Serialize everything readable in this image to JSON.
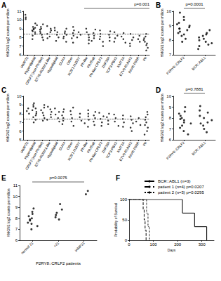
{
  "chart_data": [
    {
      "panel": "A",
      "type": "scatter",
      "marker": "circle",
      "color": "#000000",
      "grid": false,
      "ylabel": "HMGN1 log2 counts per million",
      "annotation": "p=0.001",
      "hline": 8.4,
      "ylim": [
        6,
        11
      ],
      "yticks": [
        6,
        7,
        8,
        9,
        10,
        11
      ],
      "categories": [
        "iAMP21",
        "Hyperdiploid",
        "CRLF2 (non Ph-like)",
        "ETV6-RUNX1-like",
        "Hypodiploid",
        "DUX4",
        "Other",
        "IKZF1 N159Y",
        "Ph-like",
        "PAX5alt",
        "Ph-like CRLF2",
        "ZNF384",
        "TCF3-PBX1",
        "KMT2A",
        "ETV6-RUNX1",
        "PAX5 P80R",
        "Ph"
      ],
      "values": [
        [
          10.3,
          10.6,
          10.1
        ],
        [
          9.6,
          9.4,
          9.2,
          9.1,
          9.0,
          8.9,
          8.8,
          8.7,
          8.6,
          8.4,
          8.2,
          7.8
        ],
        [
          9.5,
          9.2,
          9.0,
          8.9,
          8.7,
          8.5,
          8.3,
          8.0,
          7.7
        ],
        [
          9.3,
          9.0,
          8.8,
          8.6,
          8.4,
          8.1,
          7.9
        ],
        [
          9.1,
          8.8,
          8.6,
          8.3,
          8.0,
          7.6
        ],
        [
          9.0,
          8.7,
          8.5,
          8.3,
          8.1,
          7.9,
          7.5
        ],
        [
          9.2,
          8.8,
          8.5,
          8.2,
          7.9,
          7.4
        ],
        [
          8.6,
          8.3,
          8.0
        ],
        [
          9.0,
          8.6,
          8.3,
          8.0,
          7.7,
          7.3
        ],
        [
          8.9,
          8.5,
          8.2,
          7.9,
          7.6
        ],
        [
          8.8,
          8.4,
          8.1,
          7.8,
          7.5,
          7.0
        ],
        [
          8.7,
          8.3,
          8.0,
          7.6
        ],
        [
          8.6,
          8.2,
          7.9,
          7.5
        ],
        [
          8.5,
          8.1,
          7.8,
          7.4
        ],
        [
          8.4,
          8.0,
          7.7,
          7.3,
          7.0
        ],
        [
          8.2,
          7.8,
          7.5
        ],
        [
          8.4,
          8.1,
          7.9,
          7.7,
          7.5,
          7.3,
          7.1,
          6.8,
          6.5
        ]
      ]
    },
    {
      "panel": "B",
      "type": "scatter",
      "marker": "circle",
      "color": "#000000",
      "grid": false,
      "ylabel": "HMGN1 log2 counts per million",
      "annotation": "p=0.0001",
      "ylim": [
        7,
        10
      ],
      "yticks": [
        7,
        8,
        9,
        10
      ],
      "categories": [
        "P2RY8::CRLF2",
        "BCR::ABL1"
      ],
      "values": [
        [
          9.9,
          9.6,
          9.4,
          9.2,
          9.1,
          9.0,
          8.9,
          8.8,
          8.8,
          8.7,
          8.6,
          8.5,
          8.4,
          8.3,
          8.1,
          7.9
        ],
        [
          8.7,
          8.5,
          8.4,
          8.3,
          8.2,
          8.1,
          8.0,
          7.9,
          7.8,
          7.7,
          7.6,
          7.4
        ]
      ]
    },
    {
      "panel": "C",
      "type": "scatter",
      "marker": "circle",
      "color": "#000000",
      "grid": false,
      "ylabel": "HMGN2 log2 counts per million",
      "hline": 7.4,
      "ylim": [
        5,
        10
      ],
      "yticks": [
        5,
        6,
        7,
        8,
        9,
        10
      ],
      "categories": [
        "iAMP21",
        "Hyperdiploid",
        "CRLF2 (non Ph-like)",
        "ETV6-RUNX1-like",
        "Hypodiploid",
        "DUX4",
        "Other",
        "IKZF1 N159Y",
        "Ph-like",
        "PAX5alt",
        "Ph-like CRLF2",
        "ZNF384",
        "TCF3-PBX1",
        "KMT2A",
        "ETV6-RUNX1",
        "PAX5 P80R",
        "Ph"
      ],
      "values": [
        [
          8.3,
          8.6,
          8.0
        ],
        [
          9.2,
          9.0,
          8.8,
          8.6,
          8.4,
          8.2,
          8.0,
          7.8,
          7.6,
          7.3,
          7.0
        ],
        [
          9.0,
          8.7,
          8.4,
          8.1,
          7.8,
          7.5,
          7.2
        ],
        [
          8.8,
          8.5,
          8.2,
          7.9,
          7.6,
          7.3
        ],
        [
          8.6,
          8.2,
          7.9,
          7.5,
          7.1
        ],
        [
          8.5,
          8.2,
          7.8,
          7.5,
          7.2,
          6.8
        ],
        [
          8.7,
          8.3,
          7.9,
          7.5,
          7.1,
          6.6
        ],
        [
          8.0,
          7.6,
          7.2
        ],
        [
          8.4,
          8.0,
          7.7,
          7.3,
          6.9,
          6.5
        ],
        [
          8.2,
          7.8,
          7.5,
          7.1,
          6.7
        ],
        [
          8.1,
          7.7,
          7.4,
          7.0,
          6.6
        ],
        [
          8.0,
          7.6,
          7.2,
          6.8
        ],
        [
          7.9,
          7.5,
          7.1,
          6.6
        ],
        [
          7.8,
          7.4,
          7.0,
          6.5
        ],
        [
          7.7,
          7.3,
          6.9,
          6.4,
          6.0
        ],
        [
          7.5,
          7.1,
          6.7
        ],
        [
          8.2,
          7.9,
          7.6,
          7.3,
          7.0,
          6.7,
          6.4,
          6.0,
          5.6
        ]
      ]
    },
    {
      "panel": "D",
      "type": "scatter",
      "marker": "circle",
      "color": "#000000",
      "grid": false,
      "ylabel": "HMGN2 log2 counts per million",
      "annotation": "p=0.7881",
      "ylim": [
        6,
        10
      ],
      "yticks": [
        6,
        7,
        8,
        9,
        10
      ],
      "categories": [
        "P2RY8::CRLF2",
        "BCR::ABL1"
      ],
      "values": [
        [
          9.0,
          8.6,
          8.4,
          8.2,
          8.0,
          7.9,
          7.8,
          7.6,
          7.5,
          7.3,
          7.1,
          6.8,
          6.5
        ],
        [
          9.1,
          8.7,
          8.5,
          8.2,
          8.0,
          7.8,
          7.6,
          7.5,
          7.3,
          7.0,
          6.7
        ]
      ]
    },
    {
      "panel": "E",
      "type": "scatter",
      "marker": "circle",
      "color": "#000000",
      "grid": false,
      "ylabel": "HMGN1 log2 counts per million",
      "xlabel": "P2RY8::CRLF2 patients",
      "annotation": "p=0.0075",
      "ylim": [
        6,
        11
      ],
      "yticks": [
        6,
        7,
        8,
        9,
        10,
        11
      ],
      "categories": [
        "normal 21",
        "+21",
        "iAMP21"
      ],
      "values": [
        [
          8.9,
          8.6,
          8.4,
          8.2,
          8.0,
          7.9,
          7.8,
          7.6,
          7.5,
          7.3,
          7.0
        ],
        [
          9.3,
          8.8,
          8.5,
          8.3,
          8.1,
          7.9
        ],
        [
          10.2,
          10.5
        ]
      ]
    },
    {
      "panel": "F",
      "type": "line",
      "grid": false,
      "legend": "top",
      "xlabel": "Days",
      "ylabel": "Probability of Survival",
      "xlim": [
        0,
        350
      ],
      "xticks": [
        0,
        100,
        200,
        300
      ],
      "ylim": [
        0,
        100
      ],
      "yticks": [
        0,
        50,
        100
      ],
      "series": [
        {
          "name": "BCR::ABL1 (n=3)",
          "color": "#000000",
          "line_style": "solid",
          "x": [
            0,
            220,
            270,
            320
          ],
          "values": [
            100,
            66.7,
            33.3,
            0
          ]
        },
        {
          "name": "patient 1 (n=4) p=0.0207",
          "color": "#000000",
          "line_style": "dashed",
          "x": [
            0,
            58,
            62,
            66,
            70
          ],
          "values": [
            100,
            75,
            50,
            25,
            0
          ]
        },
        {
          "name": "patient 2 (n=3) p=0.0295",
          "color": "#000000",
          "line_style": "dotted",
          "x": [
            0,
            72,
            78,
            84
          ],
          "values": [
            100,
            66.7,
            33.3,
            0
          ]
        }
      ]
    }
  ]
}
